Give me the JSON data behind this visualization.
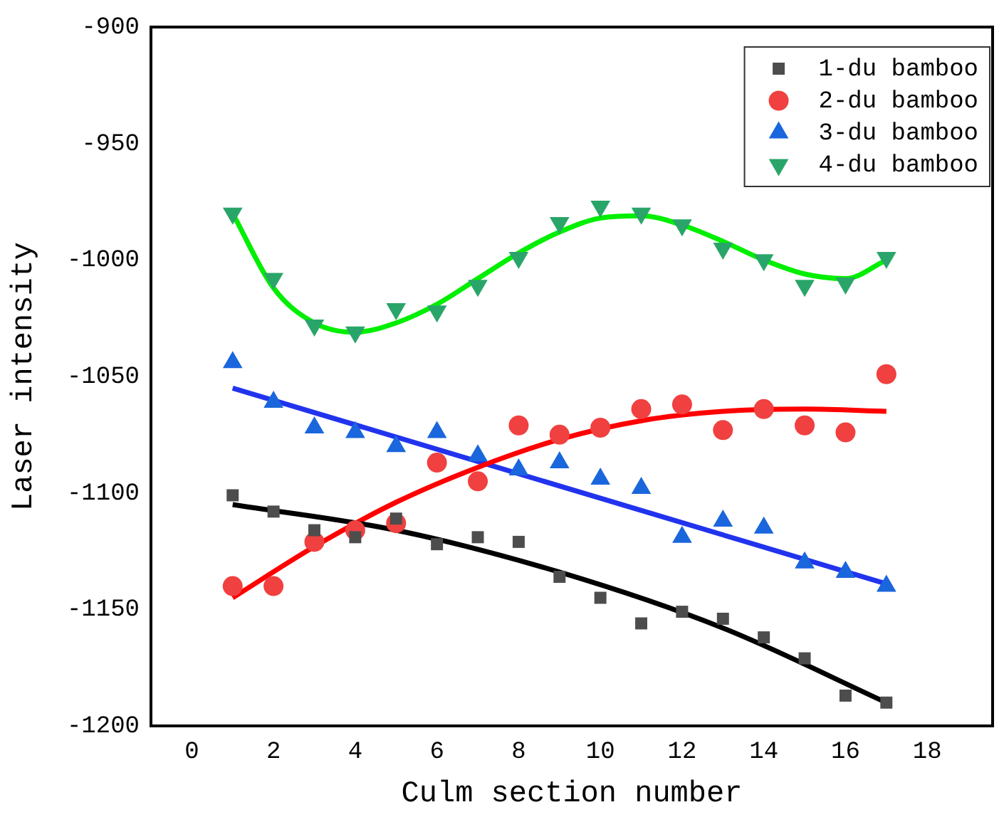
{
  "chart_data": {
    "type": "scatter",
    "xlabel": "Culm section number",
    "ylabel": "Laser intensity",
    "xlim": [
      -1,
      19.6
    ],
    "xticks": [
      0,
      2,
      4,
      6,
      8,
      10,
      12,
      14,
      16,
      18
    ],
    "ylim": [
      -1200,
      -900
    ],
    "yticks": [
      -1200,
      -1150,
      -1100,
      -1050,
      -1000,
      -950,
      -900
    ],
    "grid": false,
    "legend": "top right",
    "x": [
      1,
      2,
      3,
      4,
      5,
      6,
      7,
      8,
      9,
      10,
      11,
      12,
      13,
      14,
      15,
      16,
      17
    ],
    "series": [
      {
        "name": "1-du bamboo",
        "color": "#4d4d4d",
        "marker": "square",
        "values": [
          -1101,
          -1108,
          -1116,
          -1119,
          -1111,
          -1122,
          -1119,
          -1121,
          -1136,
          -1145,
          -1156,
          -1151,
          -1154,
          -1162,
          -1171,
          -1187,
          -1190
        ]
      },
      {
        "name": "2-du bamboo",
        "color": "#f04040",
        "marker": "circle",
        "values": [
          -1140,
          -1140,
          -1121,
          -1116,
          -1113,
          -1087,
          -1095,
          -1071,
          -1075,
          -1072,
          -1064,
          -1062,
          -1073,
          -1064,
          -1071,
          -1074,
          -1049
        ]
      },
      {
        "name": "3-du bamboo",
        "color": "#1a66dd",
        "marker": "triangle",
        "values": [
          -1044,
          -1061,
          -1072,
          -1074,
          -1080,
          -1074,
          -1084,
          -1090,
          -1087,
          -1094,
          -1098,
          -1119,
          -1112,
          -1115,
          -1130,
          -1134,
          -1140
        ]
      },
      {
        "name": "4-du bamboo",
        "color": "#2aa56a",
        "marker": "triangle_down",
        "values": [
          -980,
          -1008,
          -1028,
          -1031,
          -1021,
          -1022,
          -1011,
          -999,
          -984,
          -977,
          -980,
          -985,
          -995,
          -1000,
          -1011,
          -1010,
          -999
        ]
      },
      {
        "type": "line",
        "color": "#000000",
        "marker": "none",
        "x": [
          1,
          5,
          9,
          13,
          17
        ],
        "values": [
          -1105,
          -1116,
          -1134,
          -1158,
          -1190
        ]
      },
      {
        "type": "line",
        "color": "#ff0000",
        "marker": "none",
        "x": [
          1,
          3,
          5,
          7,
          9,
          11,
          13,
          15,
          17
        ],
        "values": [
          -1145,
          -1123,
          -1104,
          -1089,
          -1077,
          -1069,
          -1065,
          -1064,
          -1065
        ]
      },
      {
        "type": "line",
        "color": "#2233ee",
        "marker": "none",
        "x": [
          1,
          17
        ],
        "values": [
          -1055,
          -1139
        ]
      },
      {
        "type": "line",
        "color": "#00ee00",
        "marker": "none",
        "x": [
          1,
          2,
          3,
          4,
          5,
          6,
          7,
          8,
          9,
          10,
          11,
          12,
          13,
          14,
          15,
          16,
          17
        ],
        "values": [
          -980,
          -1012,
          -1027,
          -1031,
          -1027,
          -1019,
          -1008,
          -997,
          -988,
          -982,
          -981,
          -985,
          -992,
          -1000,
          -1006,
          -1008,
          -1000
        ]
      }
    ]
  }
}
